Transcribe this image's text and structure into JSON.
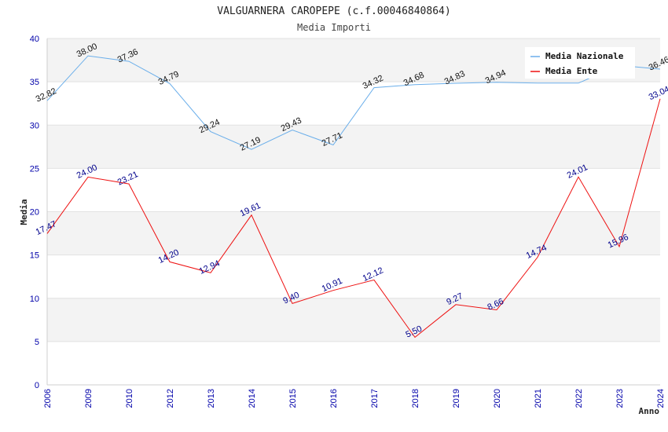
{
  "chart_data": {
    "type": "line",
    "title": "VALGUARNERA CAROPEPE (c.f.00046840864)",
    "subtitle": "Media Importi",
    "xlabel": "Anno",
    "ylabel": "Media",
    "ylim": [
      0,
      40
    ],
    "yticks": [
      "0",
      "5",
      "10",
      "15",
      "20",
      "25",
      "30",
      "35",
      "40"
    ],
    "categories": [
      "2006",
      "2009",
      "2010",
      "2012",
      "2013",
      "2014",
      "2015",
      "2016",
      "2017",
      "2018",
      "2019",
      "2020",
      "2021",
      "2022",
      "2023",
      "2024"
    ],
    "grid": true,
    "legend_position": "top-right",
    "series": [
      {
        "name": "Media Nazionale",
        "color": "#6aaeea",
        "values": [
          32.82,
          38.0,
          37.36,
          34.79,
          29.24,
          27.19,
          29.43,
          27.71,
          34.32,
          34.68,
          34.83,
          34.94,
          34.85,
          34.85,
          36.9,
          36.46
        ],
        "labels": [
          "32.82",
          "38.00",
          "37.36",
          "34.79",
          "29.24",
          "27.19",
          "29.43",
          "27.71",
          "34.32",
          "34.68",
          "34.83",
          "34.94",
          "",
          "",
          "",
          "36.46"
        ]
      },
      {
        "name": "Media Ente",
        "color": "#ee1111",
        "values": [
          17.47,
          24.0,
          23.21,
          14.2,
          12.94,
          19.61,
          9.4,
          10.91,
          12.12,
          5.5,
          9.27,
          8.66,
          14.74,
          24.01,
          15.96,
          33.04
        ],
        "labels": [
          "17.47",
          "24.00",
          "23.21",
          "14.20",
          "12.94",
          "19.61",
          "9.40",
          "10.91",
          "12.12",
          "5.50",
          "9.27",
          "8.66",
          "14.74",
          "24.01",
          "15.96",
          "33.04"
        ]
      }
    ]
  }
}
